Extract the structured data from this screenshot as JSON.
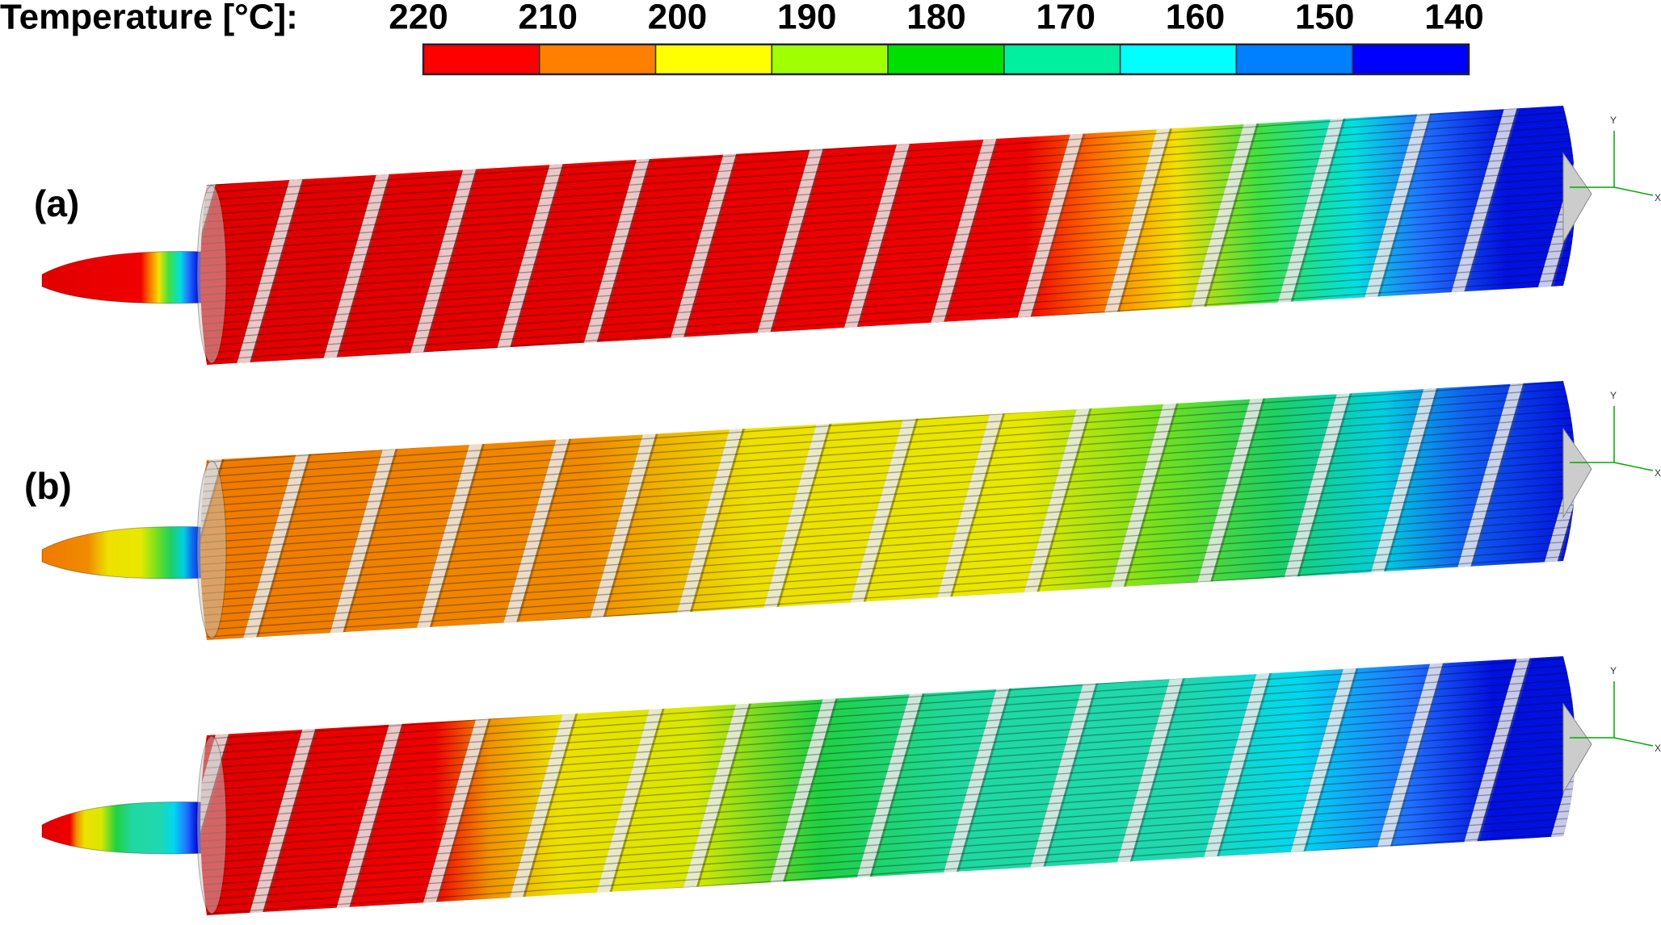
{
  "colorbar": {
    "title": "Temperature [°C]:",
    "ticks": [
      220,
      210,
      200,
      190,
      180,
      170,
      160,
      150,
      140
    ],
    "colors": [
      "#ff0000",
      "#ff8000",
      "#ffff00",
      "#a0ff00",
      "#00e000",
      "#00f0a0",
      "#00ffff",
      "#0080ff",
      "#0000ff"
    ]
  },
  "panels": [
    {
      "label": "(a)"
    },
    {
      "label": "(b)"
    }
  ],
  "triad": {
    "y": "Y",
    "x": "X"
  }
}
